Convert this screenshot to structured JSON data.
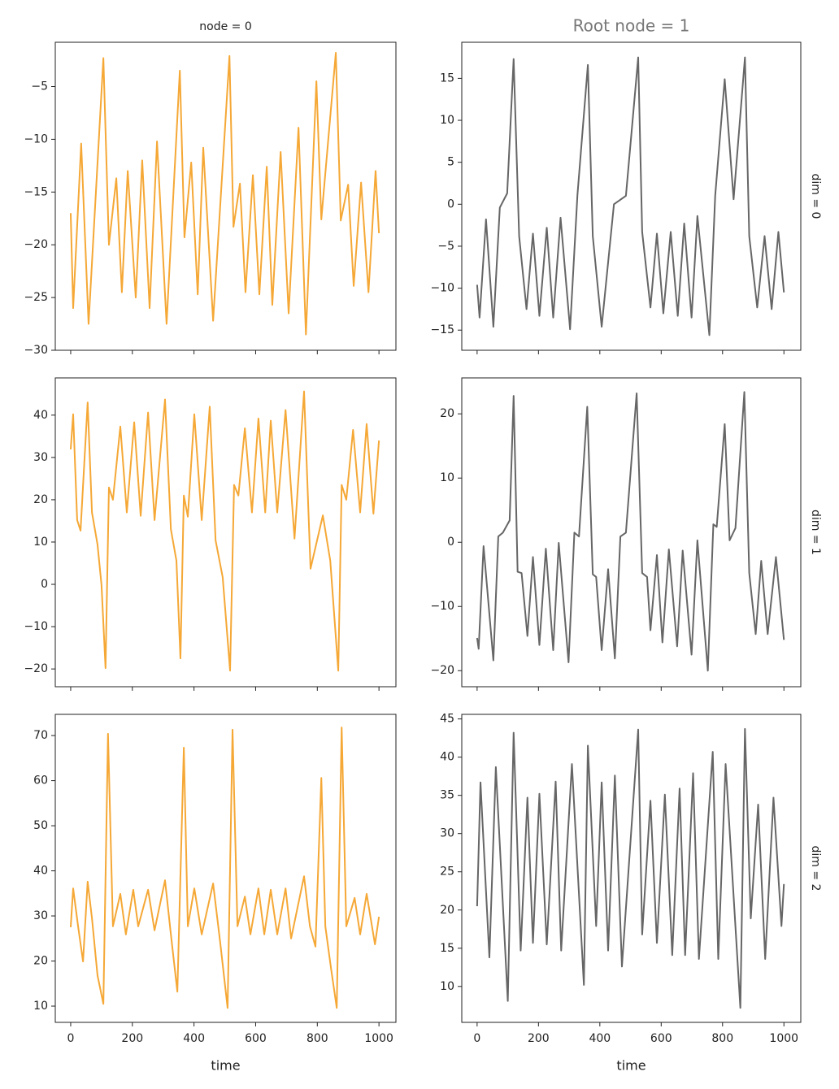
{
  "chart_data": [
    {
      "type": "line",
      "title": "node = 0",
      "color": "#f5a836",
      "show_xtick_labels": false,
      "x": [
        0,
        8,
        34,
        58,
        106,
        124,
        148,
        166,
        185,
        211,
        232,
        256,
        280,
        311,
        354,
        369,
        391,
        412,
        430,
        462,
        515,
        528,
        549,
        567,
        591,
        612,
        636,
        654,
        681,
        707,
        739,
        763,
        797,
        813,
        860,
        876,
        900,
        918,
        942,
        966,
        989,
        1000
      ],
      "values": [
        -17,
        -26,
        -10.4,
        -27.5,
        -2.3,
        -20,
        -13.7,
        -24.5,
        -13,
        -25,
        -12,
        -26,
        -10.2,
        -27.5,
        -3.5,
        -19.3,
        -12.2,
        -24.7,
        -10.8,
        -27.2,
        -2.1,
        -18.3,
        -14.2,
        -24.5,
        -13.4,
        -24.7,
        -12.6,
        -25.7,
        -11.2,
        -26.5,
        -8.9,
        -28.5,
        -4.5,
        -17.6,
        -1.8,
        -17.7,
        -14.3,
        -23.9,
        -14.1,
        -24.5,
        -13,
        -18.9
      ],
      "xlim": [
        -50,
        1055
      ],
      "xticks": [
        0,
        200,
        400,
        600,
        800,
        1000
      ],
      "ylim": [
        -30,
        -0.8
      ],
      "yticks": [
        {
          "value": -30,
          "label": "−30"
        },
        {
          "value": -25,
          "label": "−25"
        },
        {
          "value": -20,
          "label": "−20"
        },
        {
          "value": -15,
          "label": "−15"
        },
        {
          "value": -10,
          "label": "−10"
        },
        {
          "value": -5,
          "label": "−5"
        }
      ]
    },
    {
      "type": "line",
      "title": "Root node = 1",
      "row_label": "dim = 0",
      "color": "#666666",
      "show_xtick_labels": false,
      "x": [
        0,
        8,
        29,
        53,
        74,
        98,
        119,
        137,
        161,
        182,
        203,
        227,
        248,
        272,
        303,
        327,
        361,
        377,
        406,
        446,
        485,
        525,
        538,
        565,
        586,
        607,
        631,
        654,
        675,
        699,
        718,
        757,
        776,
        807,
        836,
        873,
        887,
        913,
        937,
        960,
        982,
        1000
      ],
      "values": [
        -9.6,
        -13.5,
        -1.8,
        -14.6,
        -0.4,
        1.3,
        17.3,
        -3.8,
        -12.5,
        -3.5,
        -13.3,
        -2.8,
        -13.5,
        -1.6,
        -14.9,
        1.1,
        16.6,
        -3.8,
        -14.6,
        0,
        1,
        17.5,
        -3.3,
        -12.3,
        -3.5,
        -13,
        -3.3,
        -13.3,
        -2.3,
        -13.5,
        -1.4,
        -15.6,
        1,
        14.9,
        0.6,
        17.5,
        -3.8,
        -12.3,
        -3.8,
        -12.5,
        -3.3,
        -10.5
      ],
      "xlim": [
        -50,
        1055
      ],
      "xticks": [
        0,
        200,
        400,
        600,
        800,
        1000
      ],
      "ylim": [
        -17.4,
        19.3
      ],
      "yticks": [
        {
          "value": -15,
          "label": "−15"
        },
        {
          "value": -10,
          "label": "−10"
        },
        {
          "value": -5,
          "label": "−5"
        },
        0,
        5,
        10,
        15
      ]
    },
    {
      "type": "line",
      "color": "#f5a836",
      "show_xtick_labels": false,
      "x": [
        0,
        8,
        21,
        32,
        55,
        69,
        87,
        100,
        113,
        124,
        137,
        161,
        182,
        206,
        227,
        251,
        272,
        306,
        325,
        343,
        356,
        367,
        380,
        401,
        425,
        451,
        470,
        493,
        517,
        530,
        544,
        565,
        588,
        609,
        631,
        649,
        670,
        697,
        726,
        757,
        778,
        818,
        842,
        868,
        879,
        894,
        916,
        939,
        960,
        982,
        1000
      ],
      "values": [
        31.9,
        40.2,
        15.2,
        12.7,
        43,
        17,
        9.4,
        -0.2,
        -19.8,
        22.9,
        20,
        37.3,
        17,
        38.3,
        16.2,
        40.6,
        15.2,
        43.7,
        13,
        5.6,
        -17.5,
        21,
        16,
        40.2,
        15.2,
        42,
        10.4,
        1.7,
        -20.4,
        23.5,
        21,
        36.9,
        17,
        39.2,
        17,
        38.7,
        17,
        41.2,
        10.8,
        45.6,
        3.7,
        16.3,
        5.6,
        -20.4,
        23.5,
        20,
        36.5,
        17,
        37.9,
        16.7,
        34
      ],
      "xlim": [
        -50,
        1055
      ],
      "xticks": [
        0,
        200,
        400,
        600,
        800,
        1000
      ],
      "ylim": [
        -24.2,
        48.8
      ],
      "yticks": [
        {
          "value": -20,
          "label": "−20"
        },
        {
          "value": -10,
          "label": "−10"
        },
        0,
        10,
        20,
        30,
        40
      ]
    },
    {
      "type": "line",
      "row_label": "dim = 1",
      "color": "#666666",
      "show_xtick_labels": false,
      "x": [
        0,
        5,
        21,
        53,
        69,
        84,
        106,
        119,
        132,
        145,
        164,
        182,
        203,
        224,
        248,
        266,
        298,
        317,
        332,
        359,
        377,
        388,
        406,
        427,
        449,
        467,
        485,
        520,
        538,
        554,
        565,
        586,
        604,
        625,
        652,
        670,
        699,
        718,
        752,
        770,
        781,
        807,
        823,
        842,
        871,
        887,
        908,
        926,
        947,
        974,
        1000
      ],
      "values": [
        -14.9,
        -16.6,
        -0.6,
        -18.4,
        0.9,
        1.5,
        3.4,
        22.8,
        -4.6,
        -4.8,
        -14.6,
        -2.3,
        -16,
        -1,
        -16.8,
        -0.1,
        -18.7,
        1.5,
        0.9,
        21.1,
        -5,
        -5.4,
        -16.8,
        -4.2,
        -18.1,
        0.9,
        1.5,
        23.2,
        -4.8,
        -5.4,
        -13.7,
        -2,
        -15.6,
        -1.1,
        -16.2,
        -1.3,
        -17.5,
        0.3,
        -20,
        2.8,
        2.4,
        18.4,
        0.3,
        2.2,
        23.4,
        -4.8,
        -14.3,
        -2.9,
        -14.3,
        -2.3,
        -15.2
      ],
      "xlim": [
        -50,
        1055
      ],
      "xticks": [
        0,
        200,
        400,
        600,
        800,
        1000
      ],
      "ylim": [
        -22.5,
        25.6
      ],
      "yticks": [
        {
          "value": -20,
          "label": "−20"
        },
        {
          "value": -10,
          "label": "−10"
        },
        0,
        10,
        20
      ]
    },
    {
      "type": "line",
      "xlabel": "time",
      "color": "#f5a836",
      "show_xtick_labels": true,
      "x": [
        0,
        8,
        24,
        40,
        55,
        69,
        87,
        106,
        121,
        137,
        161,
        179,
        203,
        219,
        251,
        272,
        306,
        325,
        346,
        367,
        380,
        401,
        425,
        462,
        485,
        509,
        525,
        541,
        565,
        583,
        609,
        628,
        649,
        670,
        697,
        715,
        757,
        776,
        794,
        813,
        826,
        844,
        863,
        879,
        894,
        921,
        939,
        960,
        987,
        1000
      ],
      "values": [
        27.5,
        36.1,
        27.7,
        19.9,
        37.6,
        29.5,
        16.8,
        10.5,
        70.4,
        27.7,
        34.9,
        25.9,
        35.8,
        27.7,
        35.8,
        26.8,
        37.9,
        25.9,
        13.2,
        67.3,
        27.7,
        36.1,
        25.9,
        37.2,
        24.1,
        9.6,
        71.3,
        27.7,
        34.3,
        25.9,
        36.1,
        25.9,
        35.8,
        25.9,
        36.1,
        25,
        38.8,
        27.7,
        23.2,
        60.6,
        27.7,
        18.6,
        9.6,
        71.8,
        27.7,
        34,
        25.9,
        34.9,
        23.7,
        29.8
      ],
      "xlim": [
        -50,
        1055
      ],
      "xticks": [
        0,
        200,
        400,
        600,
        800,
        1000
      ],
      "ylim": [
        6.4,
        74.7
      ],
      "yticks": [
        10,
        20,
        30,
        40,
        50,
        60,
        70
      ]
    },
    {
      "type": "line",
      "xlabel": "time",
      "row_label": "dim = 2",
      "color": "#666666",
      "show_xtick_labels": true,
      "x": [
        0,
        11,
        40,
        61,
        100,
        119,
        142,
        164,
        182,
        203,
        227,
        256,
        274,
        309,
        348,
        361,
        388,
        406,
        427,
        449,
        472,
        525,
        538,
        565,
        586,
        612,
        636,
        660,
        678,
        704,
        723,
        768,
        786,
        810,
        858,
        873,
        892,
        916,
        939,
        966,
        992,
        1000
      ],
      "values": [
        20.5,
        36.7,
        13.8,
        38.7,
        8.1,
        43.2,
        14.7,
        34.7,
        15.7,
        35.2,
        15.5,
        36.8,
        14.7,
        39.1,
        10.2,
        41.5,
        17.9,
        36.7,
        14.7,
        37.6,
        12.6,
        43.6,
        16.8,
        34.3,
        15.7,
        35.1,
        14.1,
        35.9,
        14.1,
        37.9,
        13.6,
        40.7,
        13.6,
        39.1,
        7.2,
        43.7,
        18.9,
        33.8,
        13.6,
        34.7,
        17.9,
        23.4
      ],
      "xlim": [
        -50,
        1055
      ],
      "xticks": [
        0,
        200,
        400,
        600,
        800,
        1000
      ],
      "ylim": [
        5.3,
        45.6
      ],
      "yticks": [
        10,
        15,
        20,
        25,
        30,
        35,
        40,
        45
      ]
    }
  ]
}
